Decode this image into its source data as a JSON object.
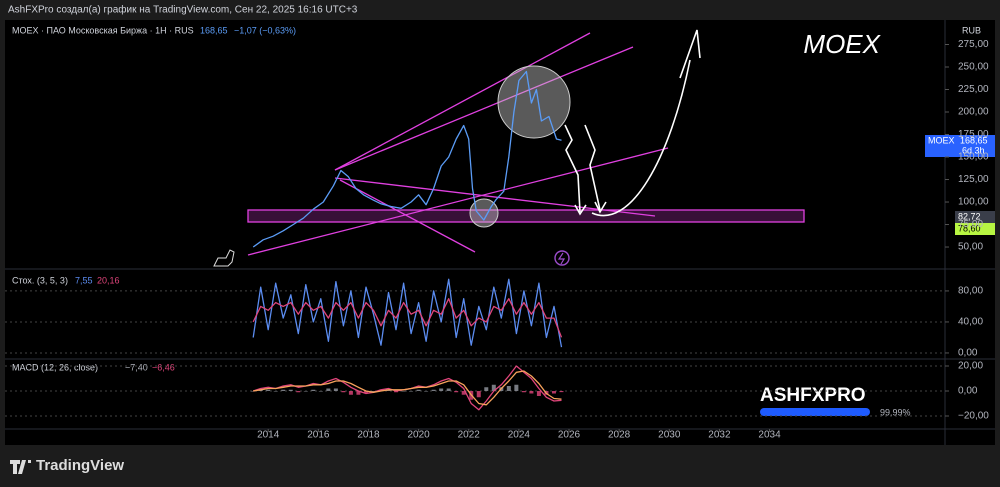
{
  "header": "AshFXPro создал(а) график на TradingView.com, Сен 22, 2025 16:16 UTC+3",
  "footer_brand": "TradingView",
  "watermark": {
    "brand": "ASHFXPRO",
    "progress": "99.99%"
  },
  "chart_data": [
    {
      "type": "line",
      "title": "MOEX · ПАО Московская Биржа · 1H · RUS",
      "legend_values": [
        "168,65",
        "−1,07 (−0,63%)"
      ],
      "annotation": "MOEX",
      "y_unit": "RUB",
      "last_label": {
        "symbol": "MOEX",
        "countdown": "6d 3h"
      },
      "level_labels": [
        "82,72",
        "78,60"
      ],
      "xlim": [
        2003.5,
        2041.0
      ],
      "xticks": [
        2014,
        2016,
        2018,
        2020,
        2022,
        2024,
        2026,
        2028,
        2030,
        2032,
        2034
      ],
      "ylim": [
        26.7,
        300
      ],
      "yticks": [
        {
          "value": 50,
          "label": "50,00"
        },
        {
          "value": 75,
          "label": "75,00"
        },
        {
          "value": 100,
          "label": "100,00"
        },
        {
          "value": 125,
          "label": "125,00"
        },
        {
          "value": 150,
          "label": "150,00"
        },
        {
          "value": 175,
          "label": "175,00"
        },
        {
          "value": 200,
          "label": "200,00"
        },
        {
          "value": 225,
          "label": "225,00"
        },
        {
          "value": 250,
          "label": "250,00"
        },
        {
          "value": 275,
          "label": "275,00"
        }
      ],
      "grid": false,
      "x": [
        2013.4,
        2013.8,
        2014.2,
        2014.6,
        2015.0,
        2015.4,
        2015.8,
        2016.2,
        2016.6,
        2016.9,
        2017.2,
        2017.5,
        2017.8,
        2018.2,
        2018.5,
        2018.9,
        2019.3,
        2019.7,
        2020.0,
        2020.3,
        2020.6,
        2020.9,
        2021.2,
        2021.5,
        2021.8,
        2022.0,
        2022.15,
        2022.3,
        2022.6,
        2022.9,
        2023.1,
        2023.4,
        2023.6,
        2023.8,
        2024.0,
        2024.3,
        2024.5,
        2024.7,
        2024.9,
        2025.2,
        2025.5,
        2025.7
      ],
      "series": [
        {
          "color": "#5b9cf6",
          "kind": "line",
          "values": [
            50,
            58,
            62,
            68,
            75,
            82,
            92,
            100,
            118,
            135,
            128,
            115,
            108,
            102,
            98,
            95,
            93,
            100,
            108,
            97,
            115,
            140,
            150,
            170,
            185,
            170,
            115,
            90,
            80,
            95,
            103,
            112,
            150,
            200,
            235,
            245,
            210,
            225,
            190,
            195,
            170,
            168.65
          ]
        }
      ]
    },
    {
      "type": "line",
      "title": "Стох. (3, 5, 3)",
      "legend_values": [
        "7,55",
        "20,16"
      ],
      "xlim": [
        2003.5,
        2041.0
      ],
      "ylim": [
        -6.5,
        107
      ],
      "yticks": [
        {
          "value": 0,
          "label": "0,00"
        },
        {
          "value": 40,
          "label": "40,00"
        },
        {
          "value": 80,
          "label": "80,00"
        }
      ],
      "grid": true,
      "x": [
        2013.4,
        2013.7,
        2014.0,
        2014.3,
        2014.6,
        2014.9,
        2015.2,
        2015.5,
        2015.8,
        2016.1,
        2016.4,
        2016.7,
        2017.0,
        2017.3,
        2017.6,
        2017.9,
        2018.2,
        2018.5,
        2018.8,
        2019.1,
        2019.4,
        2019.7,
        2020.0,
        2020.3,
        2020.6,
        2020.9,
        2021.2,
        2021.5,
        2021.8,
        2022.1,
        2022.4,
        2022.7,
        2023.0,
        2023.3,
        2023.6,
        2023.9,
        2024.2,
        2024.5,
        2024.8,
        2025.1,
        2025.4,
        2025.7
      ],
      "series": [
        {
          "color": "#5b8cf0",
          "kind": "line",
          "values": [
            20,
            85,
            30,
            90,
            45,
            75,
            25,
            88,
            40,
            70,
            15,
            92,
            35,
            80,
            20,
            85,
            50,
            10,
            78,
            30,
            90,
            25,
            65,
            15,
            80,
            40,
            95,
            20,
            70,
            10,
            60,
            30,
            85,
            45,
            95,
            25,
            80,
            35,
            90,
            20,
            60,
            7.55
          ]
        },
        {
          "color": "#e0457b",
          "kind": "line",
          "values": [
            40,
            60,
            55,
            65,
            60,
            65,
            50,
            65,
            55,
            60,
            45,
            65,
            55,
            65,
            45,
            65,
            55,
            35,
            55,
            45,
            65,
            50,
            55,
            35,
            55,
            50,
            70,
            45,
            55,
            35,
            45,
            40,
            60,
            55,
            70,
            50,
            65,
            50,
            65,
            45,
            45,
            20.16
          ]
        }
      ]
    },
    {
      "type": "line",
      "title": "MACD (12, 26, close)",
      "legend_values": [
        "−7,40",
        "−6,46"
      ],
      "xlim": [
        2003.5,
        2041.0
      ],
      "ylim": [
        -29.6,
        24.8
      ],
      "yticks": [
        {
          "value": -20,
          "label": "−20,00"
        },
        {
          "value": 0,
          "label": "0,00"
        },
        {
          "value": 20,
          "label": "20,00"
        }
      ],
      "grid": true,
      "x": [
        2013.4,
        2013.7,
        2014.0,
        2014.3,
        2014.6,
        2014.9,
        2015.2,
        2015.5,
        2015.8,
        2016.1,
        2016.4,
        2016.7,
        2017.0,
        2017.3,
        2017.6,
        2017.9,
        2018.2,
        2018.5,
        2018.8,
        2019.1,
        2019.4,
        2019.7,
        2020.0,
        2020.3,
        2020.6,
        2020.9,
        2021.2,
        2021.5,
        2021.8,
        2022.1,
        2022.4,
        2022.7,
        2023.0,
        2023.3,
        2023.6,
        2023.9,
        2024.2,
        2024.5,
        2024.8,
        2025.1,
        2025.4,
        2025.7
      ],
      "series": [
        {
          "color": "#9598a1",
          "kind": "bar",
          "values": [
            0,
            1,
            1,
            0,
            1,
            1,
            -1,
            0,
            1,
            0,
            2,
            2,
            -1,
            -3,
            -3,
            -2,
            0,
            1,
            1,
            -1,
            0,
            0,
            1,
            0,
            1,
            2,
            2,
            -1,
            -3,
            -7,
            -5,
            3,
            5,
            3,
            4,
            5,
            -1,
            -2,
            -4,
            -3,
            -2,
            -0.9
          ]
        },
        {
          "color": "#e0457b",
          "kind": "line",
          "values": [
            0,
            2,
            3,
            2,
            4,
            5,
            3,
            4,
            6,
            5,
            8,
            10,
            7,
            3,
            0,
            -2,
            -1,
            1,
            2,
            0,
            1,
            2,
            4,
            3,
            5,
            8,
            10,
            7,
            2,
            -10,
            -15,
            -8,
            0,
            5,
            12,
            20,
            15,
            10,
            2,
            -5,
            -8,
            -7.4
          ]
        },
        {
          "color": "#f7a35c",
          "kind": "line",
          "values": [
            0,
            1,
            2,
            2,
            3,
            4,
            4,
            4,
            5,
            5,
            6,
            8,
            8,
            6,
            3,
            0,
            -1,
            0,
            1,
            1,
            1,
            2,
            3,
            3,
            4,
            6,
            8,
            8,
            5,
            -3,
            -10,
            -11,
            -5,
            2,
            8,
            15,
            16,
            12,
            6,
            -2,
            -6,
            -6.46
          ]
        }
      ]
    }
  ]
}
